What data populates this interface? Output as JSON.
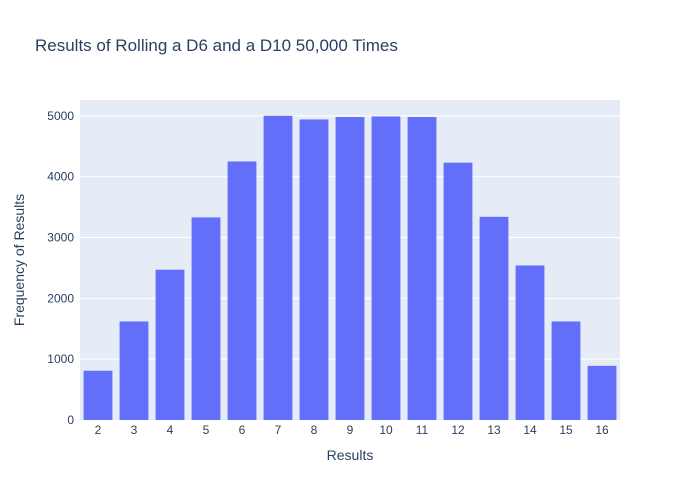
{
  "chart_data": {
    "type": "bar",
    "title": "Results of Rolling a D6 and a D10 50,000 Times",
    "xlabel": "Results",
    "ylabel": "Frequency of Results",
    "categories": [
      "2",
      "3",
      "4",
      "5",
      "6",
      "7",
      "8",
      "9",
      "10",
      "11",
      "12",
      "13",
      "14",
      "15",
      "16"
    ],
    "values": [
      810,
      1620,
      2470,
      3330,
      4250,
      5000,
      4940,
      4980,
      4990,
      4980,
      4230,
      3340,
      2540,
      1620,
      890
    ],
    "ylim": [
      0,
      5260
    ],
    "yticks": [
      0,
      1000,
      2000,
      3000,
      4000,
      5000
    ],
    "yticklabels": [
      "0",
      "1000",
      "2000",
      "3000",
      "4000",
      "5000"
    ],
    "grid": true,
    "legend": "none",
    "colors": {
      "bar": "#636efa",
      "plot_background": "#e5ecf6",
      "gridline": "#ffffff",
      "text": "#2a3f5f"
    }
  }
}
